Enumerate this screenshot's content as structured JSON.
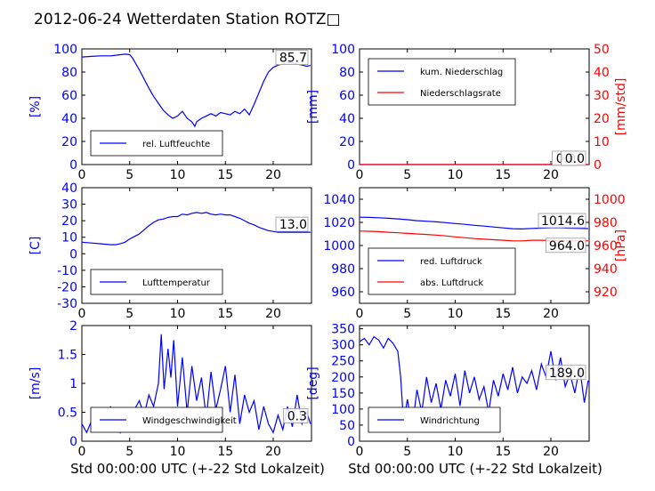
{
  "title": "2012-06-24 Wetterdaten Station ROTZ□",
  "xlabel": "Std 00:00:00 UTC (+-22 Std Lokalzeit)",
  "colors": {
    "blue": "#0000ff",
    "red": "#ff0000",
    "black": "#000000"
  },
  "x_ticks": [
    0,
    5,
    10,
    15,
    20
  ],
  "chart_data": [
    {
      "id": "humidity",
      "type": "line",
      "ylabel": "[%]",
      "ylim": [
        0,
        100
      ],
      "yticks": [
        0,
        20,
        40,
        60,
        80,
        100
      ],
      "xlim": [
        0,
        24
      ],
      "legend": {
        "position": "lower-left",
        "entries": [
          "rel. Luftfeuchte"
        ]
      },
      "annotations": [
        {
          "text": "85.7",
          "series": 0
        }
      ],
      "series": [
        {
          "name": "rel. Luftfeuchte",
          "color": "#0000ff",
          "x": [
            0,
            1,
            2,
            3,
            4,
            4.6,
            5,
            5.3,
            6,
            6.5,
            7,
            7.5,
            8,
            8.5,
            9,
            9.5,
            10,
            10.5,
            11,
            11.5,
            11.8,
            12,
            12.5,
            13,
            13.5,
            14,
            14.5,
            15,
            15.5,
            16,
            16.5,
            17,
            17.5,
            18,
            18.5,
            19,
            19.5,
            20,
            20.5,
            21,
            21.5,
            22,
            22.5,
            23,
            23.5,
            23.9
          ],
          "y": [
            93,
            93.5,
            94,
            94,
            95,
            95.5,
            95,
            92,
            82,
            74,
            66,
            59,
            53,
            47,
            43,
            40,
            42,
            46,
            40,
            37,
            33,
            37,
            40,
            42,
            44,
            42,
            45,
            44,
            43,
            46,
            44,
            48,
            43,
            52,
            62,
            72,
            80,
            84,
            86,
            87,
            88,
            88,
            87,
            86,
            85,
            85.7
          ]
        }
      ]
    },
    {
      "id": "precipitation",
      "type": "line",
      "ylabel": "[mm]",
      "ylim": [
        0,
        100
      ],
      "yticks": [
        0,
        20,
        40,
        60,
        80,
        100
      ],
      "y2label": "[mm/std]",
      "y2lim": [
        0,
        50
      ],
      "y2ticks": [
        0,
        10,
        20,
        30,
        40,
        50
      ],
      "xlim": [
        0,
        24
      ],
      "legend": {
        "position": "upper-left",
        "entries": [
          "kum. Niederschlag",
          "Niederschlagsrate"
        ]
      },
      "annotations": [
        {
          "text": "0.0",
          "series": 0
        },
        {
          "text": "0.0",
          "series": 1
        }
      ],
      "series": [
        {
          "name": "kum. Niederschlag",
          "color": "#0000ff",
          "axis": "left",
          "x": [
            0,
            6,
            12,
            18,
            24
          ],
          "y": [
            0,
            0,
            0,
            0,
            0
          ]
        },
        {
          "name": "Niederschlagsrate",
          "color": "#ff0000",
          "axis": "right",
          "x": [
            0,
            6,
            12,
            18,
            24
          ],
          "y": [
            0,
            0,
            0,
            0,
            0
          ]
        }
      ]
    },
    {
      "id": "temperature",
      "type": "line",
      "ylabel": "[C]",
      "ylim": [
        -30,
        40
      ],
      "yticks": [
        -30,
        -20,
        -10,
        0,
        10,
        20,
        30,
        40
      ],
      "xlim": [
        0,
        24
      ],
      "legend": {
        "position": "lower-left",
        "entries": [
          "Lufttemperatur"
        ]
      },
      "annotations": [
        {
          "text": "13.0",
          "series": 0
        }
      ],
      "series": [
        {
          "name": "Lufttemperatur",
          "color": "#0000ff",
          "x": [
            0,
            1,
            2,
            3,
            3.5,
            4,
            4.5,
            5,
            5.5,
            6,
            6.5,
            7,
            7.5,
            8,
            8.5,
            9,
            9.5,
            10,
            10.5,
            11,
            11.5,
            12,
            12.5,
            13,
            13.5,
            14,
            14.5,
            15,
            15.5,
            16,
            16.5,
            17,
            17.5,
            18,
            18.5,
            19,
            19.5,
            20,
            20.5,
            21,
            21.5,
            22,
            22.5,
            23,
            23.5,
            23.9
          ],
          "y": [
            7,
            6.5,
            6,
            5.5,
            5.5,
            6,
            7,
            9,
            10.5,
            12,
            14.5,
            17,
            19,
            20.5,
            21,
            22,
            22.5,
            22.5,
            24,
            23.5,
            24.5,
            25,
            24.5,
            25,
            24,
            23.5,
            24,
            23.5,
            23.5,
            22.5,
            21.5,
            20,
            18.5,
            17.5,
            16,
            15,
            14,
            13.5,
            13,
            13,
            13,
            13,
            13,
            13,
            13,
            13
          ]
        }
      ]
    },
    {
      "id": "pressure",
      "type": "line",
      "ylim": [
        950,
        1050
      ],
      "yticks": [
        960,
        980,
        1000,
        1020,
        1040
      ],
      "y2label": "[hPa]",
      "y2lim": [
        910,
        1010
      ],
      "y2ticks": [
        920,
        940,
        960,
        980,
        1000
      ],
      "xlim": [
        0,
        24
      ],
      "legend": {
        "position": "lower-left",
        "entries": [
          "red. Luftdruck",
          "abs. Luftdruck"
        ]
      },
      "annotations": [
        {
          "text": "1014.6",
          "series": 0
        },
        {
          "text": "964.0",
          "series": 1
        }
      ],
      "series": [
        {
          "name": "red. Luftdruck",
          "color": "#0000ff",
          "axis": "left",
          "x": [
            0,
            1,
            2,
            3,
            4,
            5,
            6,
            7,
            8,
            9,
            10,
            11,
            12,
            13,
            14,
            15,
            16,
            17,
            18,
            19,
            20,
            21,
            22,
            23,
            23.9
          ],
          "y": [
            1024.5,
            1024.3,
            1024,
            1023.5,
            1023,
            1022.3,
            1021.5,
            1021,
            1020.5,
            1019.8,
            1019,
            1018.3,
            1017.5,
            1016.8,
            1016,
            1015.2,
            1014.5,
            1014.3,
            1014.8,
            1015,
            1015.3,
            1015.2,
            1015,
            1014.8,
            1014.6
          ]
        },
        {
          "name": "abs. Luftdruck",
          "color": "#ff0000",
          "axis": "right",
          "x": [
            0,
            1,
            2,
            3,
            4,
            5,
            6,
            7,
            8,
            9,
            10,
            11,
            12,
            13,
            14,
            15,
            16,
            17,
            18,
            19,
            20,
            21,
            22,
            23,
            23.9
          ],
          "y": [
            972.5,
            972.3,
            972,
            971.5,
            971,
            970.5,
            970,
            969.5,
            969,
            968.3,
            967.5,
            966.8,
            966,
            965.5,
            965,
            964.5,
            964,
            964,
            964.5,
            964.5,
            964.3,
            964.2,
            964.2,
            964.1,
            964
          ]
        }
      ]
    },
    {
      "id": "windspeed",
      "type": "line",
      "ylabel": "[m/s]",
      "ylim": [
        0,
        2
      ],
      "yticks": [
        0,
        0.5,
        1,
        1.5,
        2
      ],
      "xlim": [
        0,
        24
      ],
      "legend": {
        "position": "lower-left",
        "entries": [
          "Windgeschwindigkeit"
        ]
      },
      "annotations": [
        {
          "text": "0.3",
          "series": 0
        }
      ],
      "series": [
        {
          "name": "Windgeschwindigkeit",
          "color": "#0000ff",
          "x": [
            0,
            0.5,
            1,
            1.5,
            2,
            2.5,
            3,
            3.5,
            4,
            4.5,
            5,
            5.5,
            6,
            6.5,
            7,
            7.5,
            8,
            8.3,
            8.6,
            9,
            9.3,
            9.6,
            10,
            10.5,
            11,
            11.5,
            12,
            12.5,
            13,
            13.5,
            14,
            14.5,
            15,
            15.5,
            16,
            16.5,
            17,
            17.5,
            18,
            18.5,
            19,
            19.5,
            20,
            20.5,
            21,
            21.5,
            22,
            22.5,
            23,
            23.5,
            23.9
          ],
          "y": [
            0.3,
            0.15,
            0.35,
            0.2,
            0.45,
            0.25,
            0.6,
            0.3,
            0.15,
            0.5,
            0.2,
            0.55,
            0.7,
            0.45,
            0.8,
            0.6,
            1.0,
            1.85,
            0.9,
            1.6,
            1.1,
            1.75,
            0.6,
            1.45,
            0.5,
            1.3,
            0.7,
            1.1,
            0.4,
            1.2,
            0.55,
            0.9,
            1.3,
            0.5,
            1.15,
            0.3,
            0.8,
            0.5,
            0.7,
            0.2,
            0.6,
            0.3,
            0.15,
            0.45,
            0.2,
            0.6,
            0.25,
            0.8,
            0.3,
            0.5,
            0.3
          ]
        }
      ]
    },
    {
      "id": "winddirection",
      "type": "line",
      "ylabel": "[deg]",
      "ylim": [
        0,
        360
      ],
      "yticks": [
        0,
        50,
        100,
        150,
        200,
        250,
        300,
        350
      ],
      "xlim": [
        0,
        24
      ],
      "legend": {
        "position": "lower-left",
        "entries": [
          "Windrichtung"
        ]
      },
      "annotations": [
        {
          "text": "189.0",
          "series": 0
        }
      ],
      "series": [
        {
          "name": "Windrichtung",
          "color": "#0000ff",
          "x": [
            0,
            0.5,
            1,
            1.5,
            2,
            2.5,
            3,
            3.5,
            4,
            4.3,
            4.6,
            5,
            5.5,
            6,
            6.5,
            7,
            7.5,
            8,
            8.5,
            9,
            9.5,
            10,
            10.5,
            11,
            11.5,
            12,
            12.5,
            13,
            13.5,
            14,
            14.5,
            15,
            15.5,
            16,
            16.5,
            17,
            17.5,
            18,
            18.5,
            19,
            19.5,
            20,
            20.5,
            21,
            21.5,
            22,
            22.5,
            23,
            23.5,
            23.9
          ],
          "y": [
            310,
            320,
            300,
            325,
            315,
            290,
            320,
            305,
            280,
            200,
            60,
            130,
            40,
            160,
            90,
            200,
            120,
            180,
            100,
            190,
            140,
            210,
            110,
            220,
            150,
            200,
            130,
            170,
            90,
            190,
            140,
            210,
            160,
            230,
            150,
            200,
            180,
            220,
            160,
            240,
            200,
            280,
            190,
            260,
            170,
            210,
            150,
            230,
            120,
            189
          ]
        }
      ]
    }
  ]
}
